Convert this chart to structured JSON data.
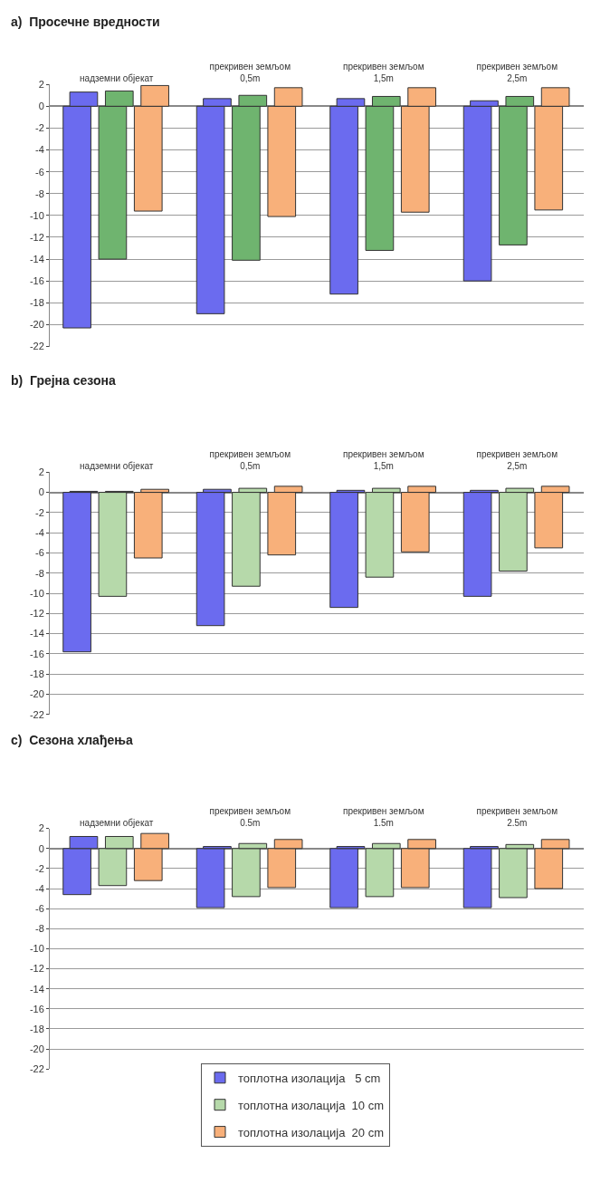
{
  "chart_data": [
    {
      "type": "bar",
      "title": "a)  Просечне вредности",
      "categories": [
        "надземни објекат",
        "прекривен земљом 0,5m",
        "прекривен земљом 1,5m",
        "прекривен земљом 2,5m"
      ],
      "ylim": [
        -22,
        2
      ],
      "yticks": [
        -22,
        -20,
        -18,
        -16,
        -14,
        -12,
        -10,
        -8,
        -6,
        -4,
        -2,
        0,
        2
      ],
      "grid": "y",
      "legend": false,
      "series": [
        {
          "color": "#6b6bef",
          "values": [
            -20.3,
            -19.0,
            -17.2,
            -16.0
          ]
        },
        {
          "color": "#6b6bef",
          "values": [
            1.3,
            0.7,
            0.7,
            0.5
          ]
        },
        {
          "color": "#6fb46f",
          "values": [
            -14.0,
            -14.1,
            -13.2,
            -12.7
          ]
        },
        {
          "color": "#6fb46f",
          "values": [
            1.4,
            1.0,
            0.9,
            0.9
          ]
        },
        {
          "color": "#f8b07a",
          "values": [
            -9.6,
            -10.1,
            -9.7,
            -9.5
          ]
        },
        {
          "color": "#f8b07a",
          "values": [
            1.9,
            1.7,
            1.7,
            1.7
          ]
        }
      ]
    },
    {
      "type": "bar",
      "title": "b)  Грејна сезона",
      "categories": [
        "надземни објекат",
        "прекривен земљом 0,5m",
        "прекривен земљом 1,5m",
        "прекривен земљом 2,5m"
      ],
      "ylim": [
        -22,
        2
      ],
      "yticks": [
        -22,
        -20,
        -18,
        -16,
        -14,
        -12,
        -10,
        -8,
        -6,
        -4,
        -2,
        0,
        2
      ],
      "grid": "y",
      "legend": false,
      "series": [
        {
          "color": "#6b6bef",
          "values": [
            -15.8,
            -13.2,
            -11.4,
            -10.3
          ]
        },
        {
          "color": "#6b6bef",
          "values": [
            0.1,
            0.3,
            0.2,
            0.2
          ]
        },
        {
          "color": "#b6d9aa",
          "values": [
            -10.3,
            -9.3,
            -8.4,
            -7.8
          ]
        },
        {
          "color": "#b6d9aa",
          "values": [
            0.1,
            0.4,
            0.4,
            0.4
          ]
        },
        {
          "color": "#f8b07a",
          "values": [
            -6.5,
            -6.2,
            -5.9,
            -5.5
          ]
        },
        {
          "color": "#f8b07a",
          "values": [
            0.3,
            0.6,
            0.6,
            0.6
          ]
        }
      ]
    },
    {
      "type": "bar",
      "title": "c)  Сезона хлађења",
      "categories": [
        "надземни објекат",
        "прекривен земљом 0.5m",
        "прекривен земљом 1.5m",
        "прекривен земљом 2.5m"
      ],
      "ylim": [
        -22,
        2
      ],
      "yticks": [
        -22,
        -20,
        -18,
        -16,
        -14,
        -12,
        -10,
        -8,
        -6,
        -4,
        -2,
        0,
        2
      ],
      "grid": "y",
      "legend": "bottom",
      "series": [
        {
          "name": "топлотна изолација   5 cm",
          "color": "#6b6bef",
          "values": [
            -4.6,
            -5.9,
            -5.9,
            -5.9
          ]
        },
        {
          "color": "#6b6bef",
          "values": [
            1.2,
            0.2,
            0.2,
            0.2
          ]
        },
        {
          "name": "топлотна изолација  10 cm",
          "color": "#b6d9aa",
          "values": [
            -3.7,
            -4.8,
            -4.8,
            -4.9
          ]
        },
        {
          "color": "#b6d9aa",
          "values": [
            1.2,
            0.5,
            0.5,
            0.4
          ]
        },
        {
          "name": "топлотна изолација  20 cm",
          "color": "#f8b07a",
          "values": [
            -3.2,
            -3.9,
            -3.9,
            -4.0
          ]
        },
        {
          "color": "#f8b07a",
          "values": [
            1.5,
            0.9,
            0.9,
            0.9
          ]
        }
      ]
    }
  ]
}
